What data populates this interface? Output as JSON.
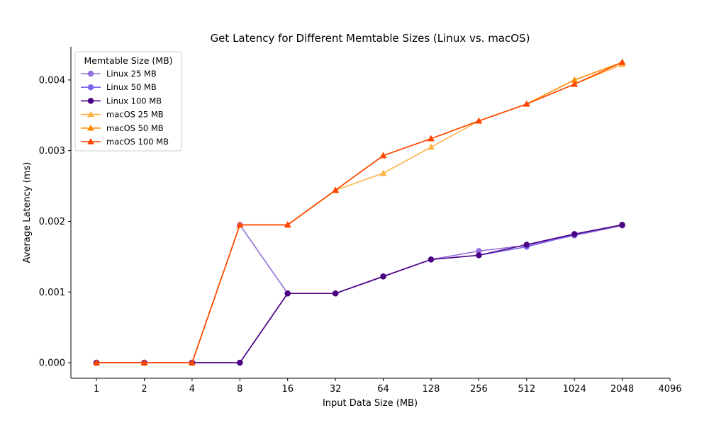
{
  "chart_data": {
    "type": "line",
    "title": "Get Latency for Different Memtable Sizes (Linux vs. macOS)",
    "xlabel": "Input Data Size (MB)",
    "ylabel": "Average Latency (ms)",
    "x_scale": "log2",
    "x_ticks": [
      "1",
      "2",
      "4",
      "8",
      "16",
      "32",
      "64",
      "128",
      "256",
      "512",
      "1024",
      "2048",
      "4096"
    ],
    "y_ticks": [
      "0.000",
      "0.001",
      "0.002",
      "0.003",
      "0.004"
    ],
    "ylim": [
      -0.00022,
      0.00447
    ],
    "xlim": [
      0.69,
      4096
    ],
    "grid": false,
    "legend": {
      "title": "Memtable Size (MB)",
      "placement": "top-left"
    },
    "x": [
      1,
      2,
      4,
      8,
      16,
      32,
      64,
      128,
      256,
      512,
      1024,
      2048
    ],
    "series": [
      {
        "name": "Linux 25 MB",
        "color": "#9370db",
        "marker": "circle",
        "values": [
          0,
          0,
          0,
          0.00195,
          0.00098,
          0.00098,
          0.00122,
          0.00146,
          0.00158,
          0.00166,
          0.0018,
          0.00194
        ]
      },
      {
        "name": "Linux 50 MB",
        "color": "#7b68ee",
        "marker": "circle",
        "values": [
          0,
          0,
          0,
          0,
          0.00098,
          0.00098,
          0.00122,
          0.00146,
          0.00152,
          0.00164,
          0.00181,
          0.00195
        ]
      },
      {
        "name": "Linux 100 MB",
        "color": "#4b0082",
        "marker": "circle",
        "values": [
          0,
          0,
          0,
          0,
          0.00098,
          0.00098,
          0.00122,
          0.00146,
          0.00152,
          0.00167,
          0.00182,
          0.00195
        ]
      },
      {
        "name": "macOS 25 MB",
        "color": "#ffb347",
        "marker": "triangle",
        "values": [
          0,
          0,
          0,
          0.00195,
          0.00195,
          0.00244,
          0.00268,
          0.00305,
          0.00342,
          0.00366,
          0.00394,
          0.00422
        ]
      },
      {
        "name": "macOS 50 MB",
        "color": "#ff8c00",
        "marker": "triangle",
        "values": [
          0,
          0,
          0,
          0.00195,
          0.00195,
          0.00244,
          0.00293,
          0.00317,
          0.00342,
          0.00366,
          0.004,
          0.00425
        ]
      },
      {
        "name": "macOS 100 MB",
        "color": "#ff4500",
        "marker": "triangle",
        "values": [
          0,
          0,
          0,
          0.00195,
          0.00195,
          0.00244,
          0.00293,
          0.00317,
          0.00342,
          0.00366,
          0.00394,
          0.00425
        ]
      }
    ]
  }
}
